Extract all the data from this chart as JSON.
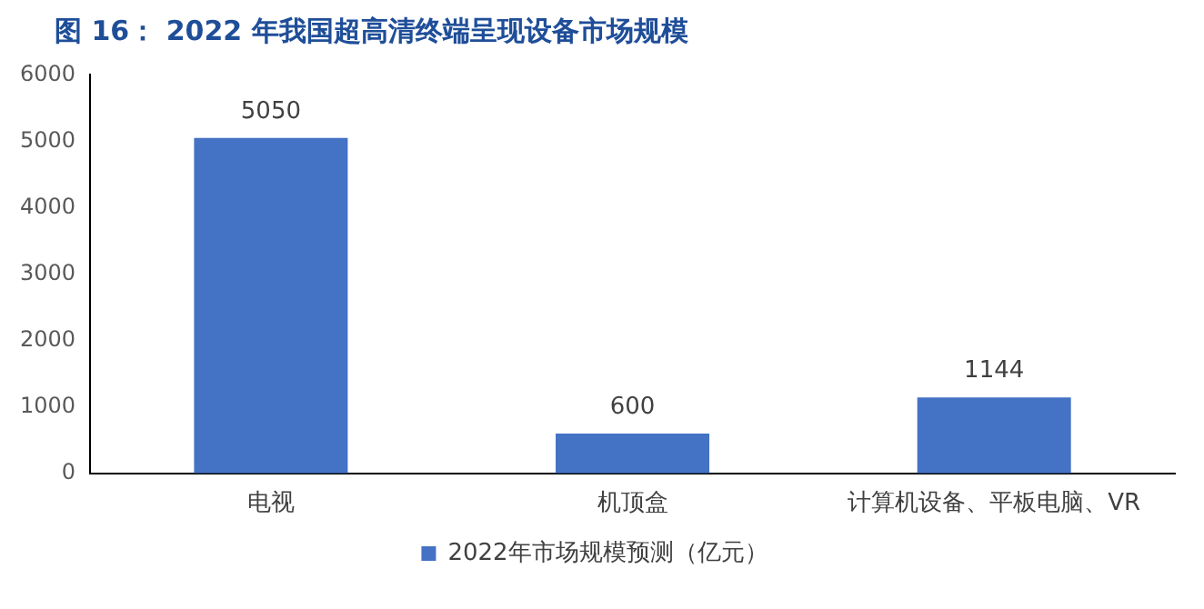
{
  "chart_data": {
    "type": "bar",
    "title": "图 16：  2022 年我国超高清终端呈现设备市场规模",
    "categories": [
      "电视",
      "机顶盒",
      "计算机设备、平板电脑、VR"
    ],
    "series": [
      {
        "name": "2022年市场规模预测（亿元）",
        "color": "#4472c4",
        "values": [
          5050,
          600,
          1144
        ]
      }
    ],
    "ylim": [
      0,
      6000
    ],
    "yticks": [
      0,
      1000,
      2000,
      3000,
      4000,
      5000,
      6000
    ],
    "grid": false,
    "legend": "bottom",
    "data_labels": true
  }
}
